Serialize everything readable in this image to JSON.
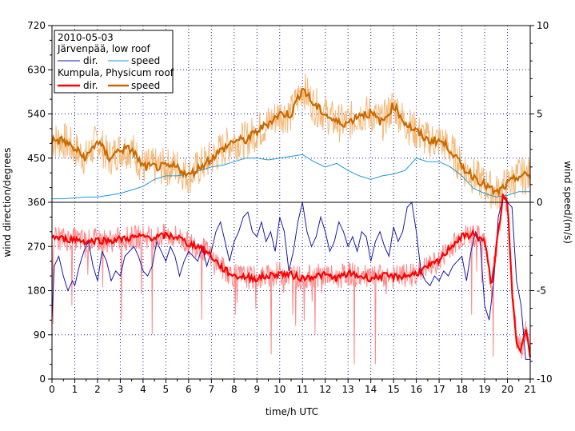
{
  "chart_data": {
    "type": "line",
    "xlabel": "time/h UTC",
    "ylabel_left": "wind direction/degrees",
    "ylabel_right": "wind speed/(m/s)",
    "xlim": [
      0,
      21
    ],
    "ylim_left": [
      0,
      720
    ],
    "ylim_right": [
      -10,
      10
    ],
    "x_ticks": [
      "0",
      "1",
      "2",
      "3",
      "4",
      "5",
      "6",
      "7",
      "8",
      "9",
      "10",
      "11",
      "12",
      "13",
      "14",
      "15",
      "16",
      "17",
      "18",
      "19",
      "20",
      "21"
    ],
    "y_ticks_left": [
      "0",
      "90",
      "180",
      "270",
      "360",
      "450",
      "540",
      "630",
      "720"
    ],
    "y_ticks_right": [
      "-10",
      "-5",
      "0",
      "5",
      "10"
    ],
    "grid": true,
    "legend": {
      "position": "top-left",
      "date": "2010-05-03",
      "group1": "Järvenpää, low roof",
      "group2": "Kumpula, Physicum roof",
      "dir_label": "dir.",
      "speed_label": "speed"
    },
    "colors": {
      "jarvenpaa_dir": "#1a1aa8",
      "jarvenpaa_speed": "#1e9ad6",
      "kumpula_dir": "#ff0000",
      "kumpula_dir_raw": "#ff8a8a",
      "kumpula_speed": "#c86a00",
      "kumpula_speed_raw": "#f5b97a",
      "grid": "#1a1aa8"
    },
    "series": [
      {
        "name": "Järvenpää dir.",
        "axis": "left",
        "x": [
          0,
          0.1,
          0.3,
          0.5,
          0.7,
          0.9,
          1.0,
          1.2,
          1.4,
          1.6,
          1.8,
          2.0,
          2.2,
          2.4,
          2.6,
          2.8,
          3.0,
          3.2,
          3.4,
          3.6,
          3.8,
          4.0,
          4.2,
          4.4,
          4.6,
          4.8,
          5.0,
          5.2,
          5.4,
          5.6,
          5.8,
          6.0,
          6.2,
          6.4,
          6.6,
          6.8,
          7.0,
          7.2,
          7.4,
          7.6,
          7.8,
          8.0,
          8.2,
          8.4,
          8.6,
          8.8,
          9.0,
          9.2,
          9.4,
          9.6,
          9.8,
          10.0,
          10.2,
          10.4,
          10.6,
          10.8,
          11.0,
          11.2,
          11.4,
          11.6,
          11.8,
          12.0,
          12.2,
          12.4,
          12.6,
          12.8,
          13.0,
          13.2,
          13.4,
          13.6,
          13.8,
          14.0,
          14.2,
          14.4,
          14.6,
          14.8,
          15.0,
          15.2,
          15.4,
          15.6,
          15.8,
          16.0,
          16.2,
          16.4,
          16.6,
          16.8,
          17.0,
          17.2,
          17.4,
          17.6,
          17.8,
          18.0,
          18.2,
          18.4,
          18.6,
          18.8,
          19.0,
          19.2,
          19.4,
          19.6,
          19.8,
          20.0,
          20.2,
          20.4,
          20.6,
          20.8,
          21.0
        ],
        "values": [
          120,
          230,
          250,
          210,
          180,
          200,
          190,
          230,
          260,
          280,
          230,
          200,
          260,
          240,
          200,
          220,
          210,
          250,
          260,
          270,
          250,
          220,
          210,
          230,
          280,
          260,
          240,
          270,
          250,
          210,
          240,
          260,
          250,
          240,
          270,
          230,
          260,
          300,
          320,
          280,
          240,
          280,
          300,
          330,
          340,
          300,
          290,
          320,
          280,
          300,
          260,
          330,
          300,
          220,
          260,
          320,
          360,
          300,
          270,
          290,
          330,
          300,
          260,
          280,
          320,
          300,
          270,
          290,
          260,
          300,
          290,
          240,
          280,
          300,
          270,
          250,
          310,
          280,
          300,
          350,
          360,
          300,
          220,
          200,
          190,
          210,
          200,
          220,
          210,
          230,
          240,
          250,
          200,
          260,
          300,
          280,
          150,
          120,
          200,
          330,
          370,
          360,
          350,
          200,
          150,
          40,
          40
        ]
      },
      {
        "name": "Järvenpää speed",
        "axis": "right",
        "x": [
          0,
          0.5,
          1.0,
          1.5,
          2.0,
          2.5,
          3.0,
          3.5,
          4.0,
          4.5,
          5.0,
          5.5,
          6.0,
          6.5,
          7.0,
          7.5,
          8.0,
          8.5,
          9.0,
          9.5,
          10.0,
          10.5,
          11.0,
          11.5,
          12.0,
          12.5,
          13.0,
          13.5,
          14.0,
          14.5,
          15.0,
          15.5,
          16.0,
          16.5,
          17.0,
          17.5,
          18.0,
          18.5,
          19.0,
          19.5,
          20.0,
          20.5,
          21.0
        ],
        "values": [
          0.2,
          0.2,
          0.25,
          0.3,
          0.3,
          0.4,
          0.5,
          0.7,
          0.9,
          1.3,
          1.5,
          1.5,
          1.6,
          1.8,
          2.0,
          2.1,
          2.3,
          2.5,
          2.5,
          2.4,
          2.5,
          2.6,
          2.7,
          2.3,
          2.0,
          2.2,
          1.8,
          1.5,
          1.3,
          1.5,
          1.6,
          1.8,
          2.5,
          2.3,
          2.3,
          2.0,
          1.5,
          0.8,
          0.5,
          0.3,
          0.4,
          0.6,
          0.6
        ]
      },
      {
        "name": "Kumpula dir.",
        "axis": "left",
        "x": [
          0,
          0.5,
          1.0,
          1.5,
          2.0,
          2.5,
          3.0,
          3.5,
          4.0,
          4.5,
          5.0,
          5.5,
          6.0,
          6.5,
          7.0,
          7.5,
          8.0,
          8.5,
          9.0,
          9.5,
          10.0,
          10.5,
          11.0,
          11.5,
          12.0,
          12.5,
          13.0,
          13.5,
          14.0,
          14.5,
          15.0,
          15.5,
          16.0,
          16.5,
          17.0,
          17.5,
          18.0,
          18.5,
          19.0,
          19.3,
          19.6,
          19.8,
          20.0,
          20.2,
          20.4,
          20.6,
          20.8,
          21.0
        ],
        "values": [
          290,
          285,
          285,
          280,
          283,
          282,
          285,
          288,
          290,
          288,
          292,
          290,
          275,
          270,
          250,
          225,
          210,
          208,
          205,
          210,
          215,
          212,
          205,
          210,
          212,
          205,
          215,
          210,
          205,
          210,
          208,
          210,
          215,
          228,
          240,
          270,
          290,
          295,
          280,
          190,
          300,
          370,
          360,
          180,
          80,
          60,
          100,
          50
        ]
      },
      {
        "name": "Kumpula speed",
        "axis": "right",
        "x": [
          0,
          0.5,
          1.0,
          1.5,
          2.0,
          2.5,
          3.0,
          3.5,
          4.0,
          4.5,
          5.0,
          5.5,
          6.0,
          6.5,
          7.0,
          7.5,
          8.0,
          8.5,
          9.0,
          9.5,
          10.0,
          10.5,
          11.0,
          11.5,
          12.0,
          12.5,
          13.0,
          13.5,
          14.0,
          14.5,
          15.0,
          15.5,
          16.0,
          16.5,
          17.0,
          17.5,
          18.0,
          18.5,
          19.0,
          19.5,
          20.0,
          20.5,
          21.0
        ],
        "values": [
          3.5,
          3.5,
          3.0,
          2.5,
          3.5,
          2.5,
          3.0,
          3.0,
          2.0,
          2.0,
          2.0,
          2.0,
          1.5,
          2.0,
          2.5,
          3.0,
          3.5,
          3.5,
          4.0,
          4.5,
          5.0,
          5.0,
          6.5,
          5.5,
          5.0,
          4.5,
          4.5,
          5.0,
          5.0,
          4.5,
          5.5,
          4.5,
          4.0,
          3.5,
          3.5,
          3.0,
          2.0,
          1.5,
          1.0,
          0.5,
          1.0,
          1.5,
          1.5
        ]
      }
    ]
  }
}
